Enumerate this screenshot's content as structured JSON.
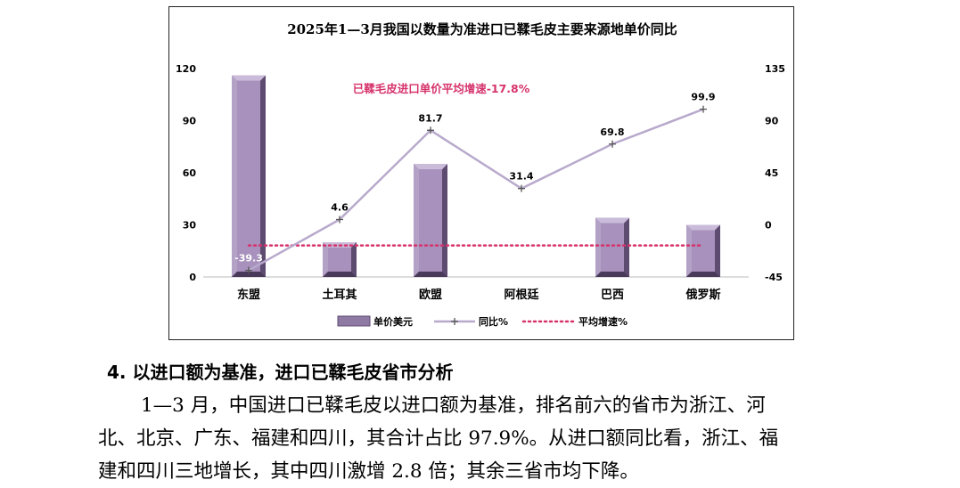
{
  "chart_data": {
    "type": "bar",
    "title": "2025年1—3月我国以数量为准进口已鞣毛皮主要来源地单价同比",
    "categories": [
      "东盟",
      "土耳其",
      "欧盟",
      "阿根廷",
      "巴西",
      "俄罗斯"
    ],
    "series": [
      {
        "name": "单价美元",
        "type": "bar",
        "axis": "left",
        "values": [
          116,
          20,
          65,
          0,
          34,
          30
        ]
      },
      {
        "name": "同比%",
        "type": "line",
        "axis": "right",
        "values": [
          -39.3,
          4.6,
          81.7,
          31.4,
          69.8,
          99.9
        ]
      },
      {
        "name": "平均增速%",
        "type": "line",
        "axis": "right",
        "values": [
          -17.8,
          -17.8,
          -17.8,
          -17.8,
          -17.8,
          -17.8
        ]
      }
    ],
    "data_labels": [
      "-39.3",
      "4.6",
      "81.7",
      "31.4",
      "69.8",
      "99.9"
    ],
    "y_left": {
      "ylim": [
        0,
        120
      ],
      "ticks": [
        "0",
        "30",
        "60",
        "90",
        "120"
      ]
    },
    "y_right": {
      "ylim": [
        -45,
        135
      ],
      "ticks": [
        "-45",
        "0",
        "45",
        "90",
        "135"
      ]
    },
    "annotation": "已鞣毛皮进口单价平均增速-17.8%",
    "legend_position": "bottom",
    "colors": {
      "bar": "#9a84ad",
      "line": "#b8a9cc",
      "avg": "#d6336c",
      "annotation": "#d6336c"
    }
  },
  "text": {
    "heading": "4. 以进口额为基准，进口已鞣毛皮省市分析",
    "para_line1": "1—3 月，中国进口已鞣毛皮以进口额为基准，排名前六的省市为浙江、河",
    "para_line2": "北、北京、广东、福建和四川，其合计占比 97.9%。从进口额同比看，浙江、福",
    "para_line3": "建和四川三地增长，其中四川激增 2.8 倍；其余三省市均下降。"
  }
}
